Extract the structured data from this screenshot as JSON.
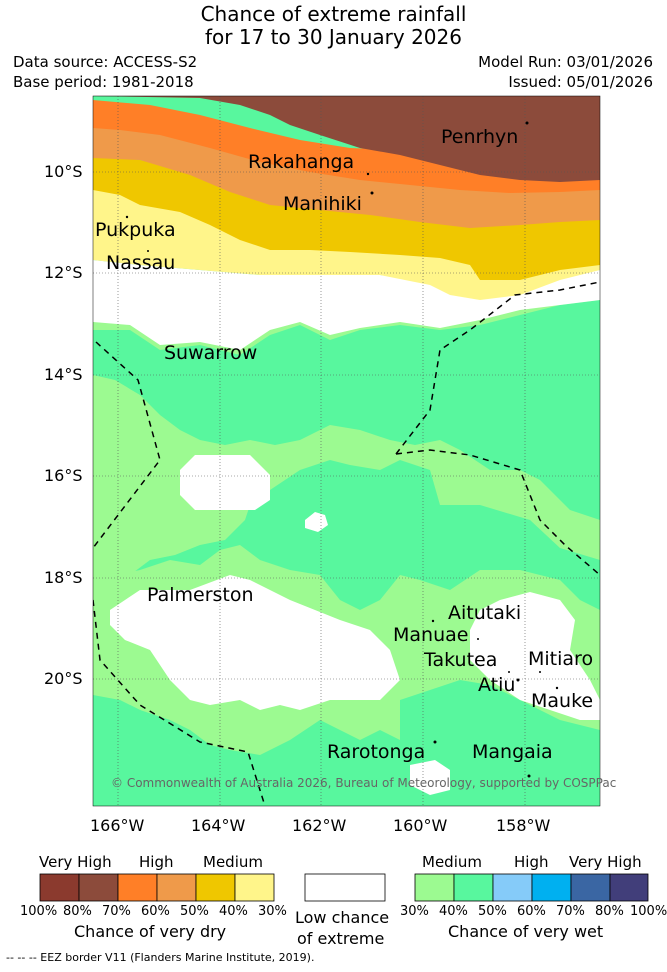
{
  "title": {
    "line1": "Chance of extreme rainfall",
    "line2": "for 17 to 30 January 2026"
  },
  "meta": {
    "data_source": "Data source: ACCESS-S2",
    "base_period": "Base period: 1981-2018",
    "model_run": "Model Run: 03/01/2026",
    "issued": "Issued: 05/01/2026"
  },
  "map": {
    "lat_labels": [
      "10°S",
      "12°S",
      "14°S",
      "16°S",
      "18°S",
      "20°S"
    ],
    "lon_labels": [
      "166°W",
      "164°W",
      "162°W",
      "160°W",
      "158°W"
    ],
    "islands": [
      "Penrhyn",
      "Rakahanga",
      "Manihiki",
      "Pukpuka",
      "Nassau",
      "Suwarrow",
      "Palmerston",
      "Aitutaki",
      "Manuae",
      "Takutea",
      "Mitiaro",
      "Atiu",
      "Mauke",
      "Rarotonga",
      "Mangaia"
    ],
    "copyright": "© Commonwealth of Australia 2026, Bureau of Meteorology, supported by COSPPac",
    "colors": {
      "dry_100_80": "#8b3a2e",
      "dry_80_70": "#8c4b3b",
      "dry_70_60": "#ff7f27",
      "dry_60_50": "#ef9a4a",
      "dry_50_40": "#efc700",
      "dry_40_30": "#fff58a",
      "low": "#ffffff",
      "wet_30_40": "#9cfa91",
      "wet_40_50": "#58f79e",
      "wet_50_60": "#85cbf9",
      "wet_60_70": "#00b0f0",
      "wet_70_80": "#3a66a3",
      "wet_80_100": "#413e7a"
    }
  },
  "legend": {
    "dry": {
      "headers": [
        "Very High",
        "High",
        "Medium"
      ],
      "ticks": [
        "100%",
        "80%",
        "70%",
        "60%",
        "50%",
        "40%",
        "30%"
      ],
      "caption": "Chance of very dry"
    },
    "low": {
      "caption_line1": "Low chance",
      "caption_line2": "of extreme"
    },
    "wet": {
      "headers": [
        "Medium",
        "High",
        "Very High"
      ],
      "ticks": [
        "30%",
        "40%",
        "50%",
        "60%",
        "70%",
        "80%",
        "100%"
      ],
      "caption": "Chance of very wet"
    }
  },
  "footnote": "--  --  -- EEZ border V11 (Flanders Marine Institute, 2019)."
}
